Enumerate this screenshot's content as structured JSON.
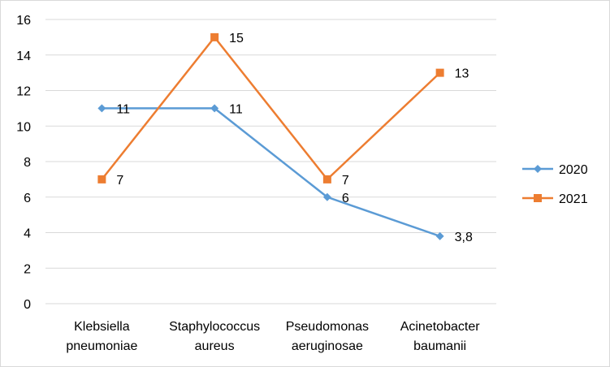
{
  "chart_data": {
    "type": "line",
    "categories": [
      [
        "Klebsiella",
        "pneumoniae"
      ],
      [
        "Staphylococcus",
        "aureus"
      ],
      [
        "Pseudomonas",
        "aeruginosae"
      ],
      [
        "Acinetobacter",
        "baumanii"
      ]
    ],
    "series": [
      {
        "name": "2020",
        "values": [
          11,
          11,
          6,
          3.8
        ],
        "labels": [
          "11",
          "11",
          "6",
          "3,8"
        ],
        "color": "#5b9bd5",
        "marker": "diamond"
      },
      {
        "name": "2021",
        "values": [
          7,
          15,
          7,
          13
        ],
        "labels": [
          "7",
          "15",
          "7",
          "13"
        ],
        "color": "#ed7d31",
        "marker": "square"
      }
    ],
    "ylim": [
      0,
      16
    ],
    "yticks": [
      0,
      2,
      4,
      6,
      8,
      10,
      12,
      14,
      16
    ],
    "grid": true,
    "legend": "right"
  }
}
